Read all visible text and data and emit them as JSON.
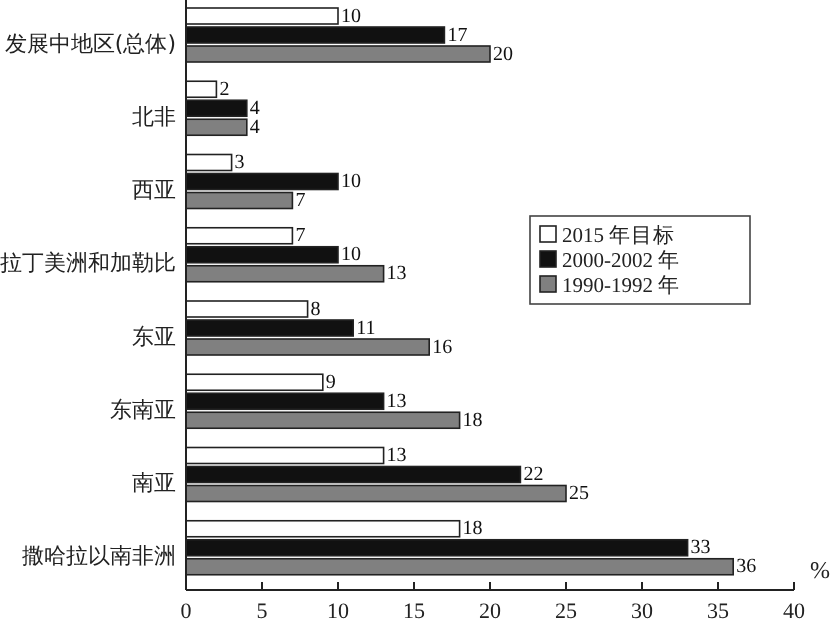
{
  "chart_data": {
    "type": "bar",
    "orientation": "horizontal",
    "xlabel": "%",
    "categories": [
      "发展中地区(总体)",
      "北非",
      "西亚",
      "拉丁美洲和加勒比",
      "东亚",
      "东南亚",
      "南亚",
      "撒哈拉以南非洲"
    ],
    "series": [
      {
        "name": "2015 年目标",
        "color": "#ffffff",
        "values": [
          10,
          2,
          3,
          7,
          8,
          9,
          13,
          18
        ]
      },
      {
        "name": "2000-2002 年",
        "color": "#111111",
        "values": [
          17,
          4,
          10,
          10,
          11,
          13,
          22,
          33
        ]
      },
      {
        "name": "1990-1992 年",
        "color": "#808080",
        "values": [
          20,
          4,
          7,
          13,
          16,
          18,
          25,
          36
        ]
      }
    ],
    "xlim": [
      0,
      40
    ],
    "xticks": [
      0,
      5,
      10,
      15,
      20,
      25,
      30,
      35,
      40
    ],
    "data_labels": true,
    "legend": "right"
  }
}
